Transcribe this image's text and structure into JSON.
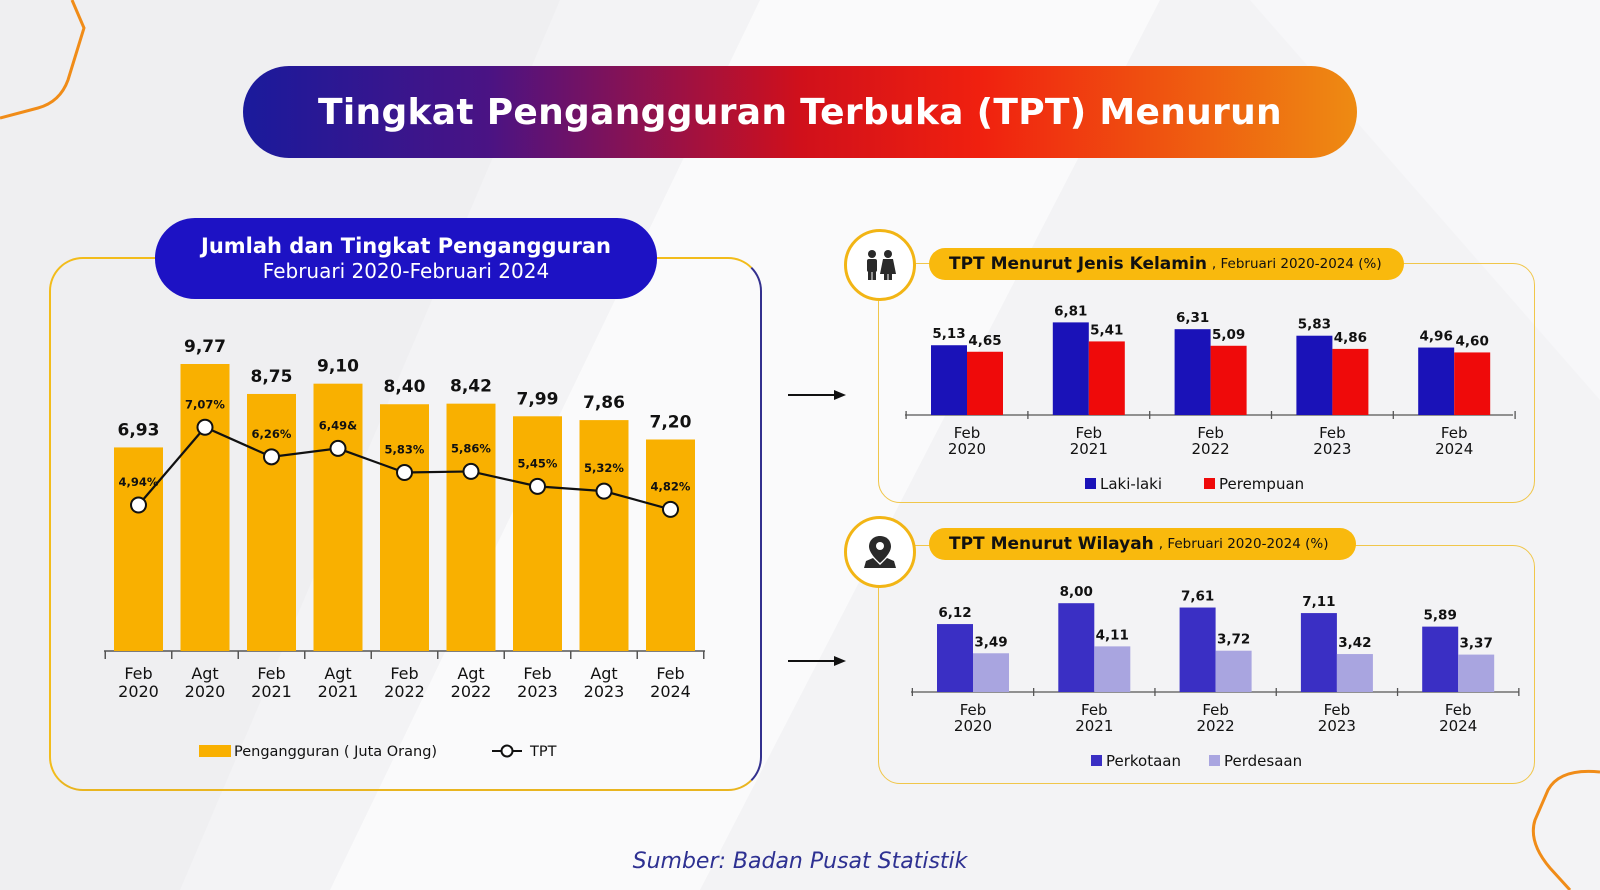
{
  "header": {
    "title": "Tingkat Pengangguran Terbuka (TPT) Menurun"
  },
  "source": "Sumber: Badan Pusat Statistik",
  "colors": {
    "bar_orange": "#f9b000",
    "male_blue": "#1a12b8",
    "female_red": "#ef0a0a",
    "urban_blue": "#3a2fc4",
    "rural_lavender": "#a9a5e0",
    "pill_blue": "#1d12c4",
    "accent_yellow": "#f9b90d"
  },
  "icons": {
    "gender": "people-icon",
    "region": "location-pin-icon",
    "arrow": "arrow-right-icon"
  },
  "chart_data": [
    {
      "type": "bar",
      "title": "Jumlah dan Tingkat Pengangguran",
      "subtitle": "Februari 2020-Februari 2024",
      "categories": [
        [
          "Feb",
          "2020"
        ],
        [
          "Agt",
          "2020"
        ],
        [
          "Feb",
          "2021"
        ],
        [
          "Agt",
          "2021"
        ],
        [
          "Feb",
          "2022"
        ],
        [
          "Agt",
          "2022"
        ],
        [
          "Feb",
          "2023"
        ],
        [
          "Agt",
          "2023"
        ],
        [
          "Feb",
          "2024"
        ]
      ],
      "series": [
        {
          "name": "Pengangguran ( Juta Orang)",
          "type": "bar",
          "values": [
            6.93,
            9.77,
            8.75,
            9.1,
            8.4,
            8.42,
            7.99,
            7.86,
            7.2
          ],
          "labels": [
            "6,93",
            "9,77",
            "8,75",
            "9,10",
            "8,40",
            "8,42",
            "7,99",
            "7,86",
            "7,20"
          ]
        },
        {
          "name": "TPT",
          "type": "line",
          "values": [
            4.94,
            7.07,
            6.26,
            6.49,
            5.83,
            5.86,
            5.45,
            5.32,
            4.82
          ],
          "labels": [
            "4,94%",
            "7,07%",
            "6,26%",
            "6,49&",
            "5,83%",
            "5,86%",
            "5,45%",
            "5,32%",
            "4,82%"
          ]
        }
      ],
      "legend": "bottom"
    },
    {
      "type": "bar",
      "title": "TPT Menurut Jenis Kelamin",
      "subtitle": ", Februari 2020-2024 (%)",
      "categories": [
        [
          "Feb",
          "2020"
        ],
        [
          "Feb",
          "2021"
        ],
        [
          "Feb",
          "2022"
        ],
        [
          "Feb",
          "2023"
        ],
        [
          "Feb",
          "2024"
        ]
      ],
      "series": [
        {
          "name": "Laki-laki",
          "values": [
            5.13,
            6.81,
            6.31,
            5.83,
            4.96
          ],
          "labels": [
            "5,13",
            "6,81",
            "6,31",
            "5,83",
            "4,96"
          ]
        },
        {
          "name": "Perempuan",
          "values": [
            4.65,
            5.41,
            5.09,
            4.86,
            4.6
          ],
          "labels": [
            "4,65",
            "5,41",
            "5,09",
            "4,86",
            "4,60"
          ]
        }
      ],
      "legend": "bottom"
    },
    {
      "type": "bar",
      "title": "TPT Menurut Wilayah",
      "subtitle": ", Februari 2020-2024 (%)",
      "categories": [
        [
          "Feb",
          "2020"
        ],
        [
          "Feb",
          "2021"
        ],
        [
          "Feb",
          "2022"
        ],
        [
          "Feb",
          "2023"
        ],
        [
          "Feb",
          "2024"
        ]
      ],
      "series": [
        {
          "name": "Perkotaan",
          "values": [
            6.12,
            8.0,
            7.61,
            7.11,
            5.89
          ],
          "labels": [
            "6,12",
            "8,00",
            "7,61",
            "7,11",
            "5,89"
          ]
        },
        {
          "name": "Perdesaan",
          "values": [
            3.49,
            4.11,
            3.72,
            3.42,
            3.37
          ],
          "labels": [
            "3,49",
            "4,11",
            "3,72",
            "3,42",
            "3,37"
          ]
        }
      ],
      "legend": "bottom"
    }
  ]
}
